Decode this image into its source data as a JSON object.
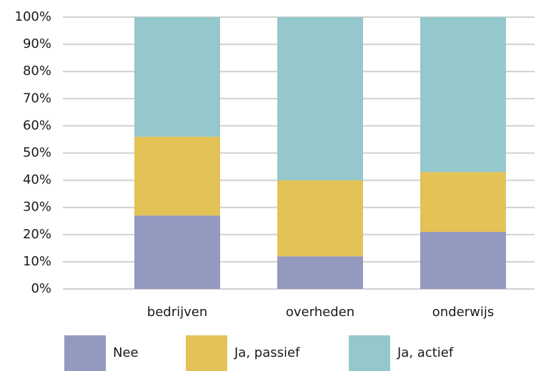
{
  "chart_data": {
    "type": "stacked_bar",
    "categories": [
      "bedrijven",
      "overheden",
      "onderwijs"
    ],
    "series": [
      {
        "name": "Nee",
        "color": "#9499c0",
        "values": [
          27,
          12,
          21
        ]
      },
      {
        "name": "Ja, passief",
        "color": "#e3c257",
        "values": [
          29,
          28,
          22
        ]
      },
      {
        "name": "Ja, actief",
        "color": "#94c8cc",
        "values": [
          44,
          60,
          57
        ]
      }
    ],
    "ylim": [
      0,
      100
    ],
    "yticks": [
      {
        "value": 0,
        "label": "0%"
      },
      {
        "value": 10,
        "label": "10%"
      },
      {
        "value": 20,
        "label": "20%"
      },
      {
        "value": 30,
        "label": "30%"
      },
      {
        "value": 40,
        "label": "40%"
      },
      {
        "value": 50,
        "label": "50%"
      },
      {
        "value": 60,
        "label": "60%"
      },
      {
        "value": 70,
        "label": "70%"
      },
      {
        "value": 80,
        "label": "80%"
      },
      {
        "value": 90,
        "label": "90%"
      },
      {
        "value": 100,
        "label": "100%"
      }
    ],
    "grid": true,
    "legend": "bottom"
  }
}
